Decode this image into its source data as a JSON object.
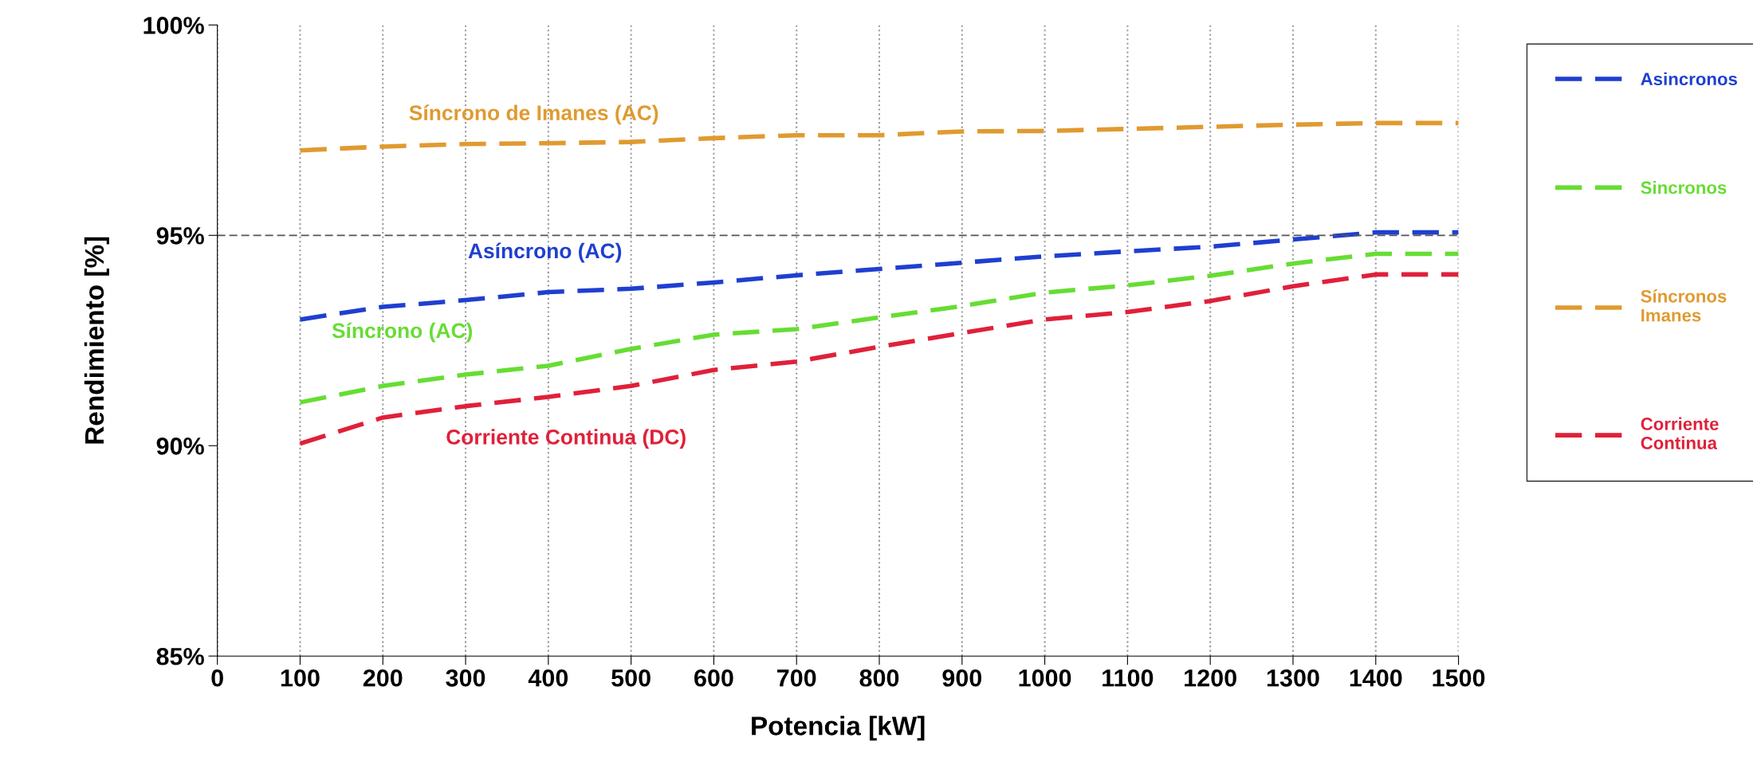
{
  "chart_data": {
    "type": "line",
    "xlabel": "Potencia [kW]",
    "ylabel": "Rendimiento [%]",
    "x": [
      100,
      200,
      300,
      400,
      500,
      600,
      700,
      800,
      900,
      1000,
      1100,
      1200,
      1300,
      1400,
      1500
    ],
    "series": [
      {
        "name": "Asincronos",
        "color": "#1f3fd0",
        "values": [
          93.0,
          93.3,
          93.46,
          93.65,
          93.73,
          93.88,
          94.05,
          94.2,
          94.35,
          94.5,
          94.62,
          94.73,
          94.9,
          95.07,
          95.07
        ]
      },
      {
        "name": "Sincronos",
        "color": "#66dd33",
        "values": [
          91.03,
          91.42,
          91.69,
          91.9,
          92.3,
          92.64,
          92.77,
          93.05,
          93.32,
          93.64,
          93.81,
          94.04,
          94.33,
          94.56,
          94.56
        ]
      },
      {
        "name": "Síncronos\nImanes",
        "color": "#e09a30",
        "values": [
          97.02,
          97.11,
          97.17,
          97.19,
          97.22,
          97.31,
          97.38,
          97.38,
          97.47,
          97.48,
          97.53,
          97.58,
          97.63,
          97.67,
          97.67
        ]
      },
      {
        "name": "Corriente\nContinua",
        "color": "#e0203a",
        "values": [
          90.05,
          90.67,
          90.94,
          91.16,
          91.42,
          91.8,
          92.0,
          92.35,
          92.68,
          93.0,
          93.18,
          93.44,
          93.79,
          94.07,
          94.07
        ]
      }
    ],
    "annotations": [
      "Asíncrono (AC)",
      "Síncrono (AC)",
      "Síncrono de Imanes (AC)",
      "Corriente Continua (DC)"
    ],
    "xlim": [
      0,
      1500
    ],
    "xticks": [
      0,
      100,
      200,
      300,
      400,
      500,
      600,
      700,
      800,
      900,
      1000,
      1100,
      1200,
      1300,
      1400,
      1500
    ],
    "ylim": [
      85,
      100
    ],
    "yticks": [
      {
        "value": 85,
        "label": "85%"
      },
      {
        "value": 90,
        "label": "90%"
      },
      {
        "value": 95,
        "label": "95%"
      },
      {
        "value": 100,
        "label": "100%"
      }
    ],
    "ref_lines": [
      {
        "axis": "y",
        "value": 95,
        "color": "#555555",
        "line_style": "dashed"
      }
    ],
    "grid": "x",
    "legend": "right",
    "line_style": "dashed",
    "marker": "none"
  }
}
